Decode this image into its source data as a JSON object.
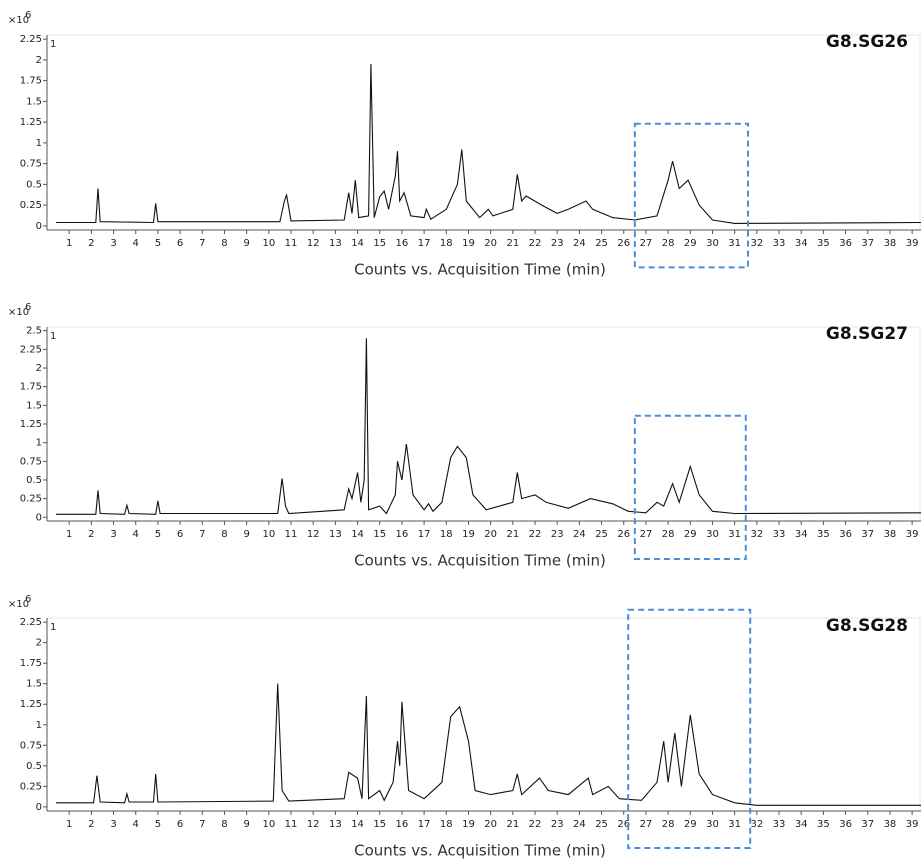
{
  "chart_data": [
    {
      "type": "line",
      "title": "G8.SG26",
      "x_label": "Counts vs. Acquisition Time (min)",
      "y_scale_label": "×10",
      "y_scale_exponent": "6",
      "trace_label": "1",
      "x": [
        0.4,
        2.2,
        2.3,
        2.4,
        4.8,
        4.9,
        5.0,
        10.5,
        10.7,
        10.8,
        11.0,
        13.4,
        13.6,
        13.75,
        13.9,
        14.05,
        14.5,
        14.6,
        14.75,
        15.0,
        15.2,
        15.4,
        15.7,
        15.8,
        15.9,
        16.1,
        16.4,
        17.0,
        17.1,
        17.3,
        18.0,
        18.5,
        18.7,
        18.9,
        19.5,
        19.9,
        20.1,
        21.0,
        21.2,
        21.4,
        21.6,
        22.3,
        23.0,
        23.5,
        24.3,
        24.6,
        25.5,
        26.5,
        27.5,
        28.0,
        28.2,
        28.5,
        28.9,
        29.4,
        30.0,
        31.0,
        39.4
      ],
      "values": [
        0.04,
        0.04,
        0.45,
        0.05,
        0.04,
        0.27,
        0.05,
        0.05,
        0.3,
        0.37,
        0.06,
        0.07,
        0.4,
        0.15,
        0.55,
        0.1,
        0.12,
        1.95,
        0.1,
        0.35,
        0.42,
        0.2,
        0.6,
        0.9,
        0.3,
        0.4,
        0.12,
        0.1,
        0.2,
        0.08,
        0.2,
        0.5,
        0.92,
        0.3,
        0.1,
        0.2,
        0.12,
        0.2,
        0.62,
        0.3,
        0.36,
        0.25,
        0.15,
        0.2,
        0.3,
        0.2,
        0.1,
        0.07,
        0.12,
        0.55,
        0.78,
        0.45,
        0.55,
        0.25,
        0.07,
        0.03,
        0.04
      ],
      "color": "#111111",
      "xlim": [
        0,
        39.4
      ],
      "xticks": [
        1,
        2,
        3,
        4,
        5,
        6,
        7,
        8,
        9,
        10,
        11,
        12,
        13,
        14,
        15,
        16,
        17,
        18,
        19,
        20,
        21,
        22,
        23,
        24,
        25,
        26,
        27,
        28,
        29,
        30,
        31,
        32,
        33,
        34,
        35,
        36,
        37,
        38,
        39
      ],
      "ylim": [
        -0.05,
        2.3
      ],
      "yticks": [
        0,
        0.25,
        0.5,
        0.75,
        1,
        1.25,
        1.5,
        1.75,
        2,
        2.25
      ],
      "highlight": {
        "x": [
          26.5,
          31.6
        ],
        "y": [
          -0.5,
          1.23
        ],
        "color": "#4a8fd6"
      }
    },
    {
      "type": "line",
      "title": "G8.SG27",
      "x_label": "Counts vs. Acquisition Time (min)",
      "y_scale_label": "×10",
      "y_scale_exponent": "6",
      "trace_label": "1",
      "x": [
        0.4,
        2.2,
        2.3,
        2.4,
        3.5,
        3.6,
        3.7,
        4.9,
        5.0,
        5.1,
        10.4,
        10.6,
        10.75,
        10.9,
        13.4,
        13.6,
        13.75,
        14.0,
        14.15,
        14.3,
        14.4,
        14.5,
        15.0,
        15.3,
        15.7,
        15.8,
        16.0,
        16.2,
        16.5,
        17.0,
        17.2,
        17.4,
        17.8,
        18.2,
        18.5,
        18.9,
        19.2,
        19.8,
        21.0,
        21.2,
        21.4,
        22.0,
        22.5,
        23.5,
        24.5,
        25.5,
        26.2,
        27.0,
        27.5,
        27.8,
        28.2,
        28.5,
        29.0,
        29.4,
        30.0,
        31.0,
        39.4
      ],
      "values": [
        0.04,
        0.04,
        0.36,
        0.05,
        0.04,
        0.16,
        0.05,
        0.04,
        0.22,
        0.05,
        0.05,
        0.52,
        0.15,
        0.05,
        0.1,
        0.38,
        0.25,
        0.6,
        0.2,
        0.5,
        2.4,
        0.1,
        0.15,
        0.05,
        0.3,
        0.75,
        0.5,
        0.98,
        0.3,
        0.1,
        0.18,
        0.08,
        0.2,
        0.8,
        0.95,
        0.8,
        0.3,
        0.1,
        0.2,
        0.6,
        0.25,
        0.3,
        0.2,
        0.12,
        0.25,
        0.18,
        0.08,
        0.06,
        0.2,
        0.15,
        0.45,
        0.2,
        0.68,
        0.3,
        0.08,
        0.05,
        0.06
      ],
      "color": "#111111",
      "xlim": [
        0,
        39.4
      ],
      "xticks": [
        1,
        2,
        3,
        4,
        5,
        6,
        7,
        8,
        9,
        10,
        11,
        12,
        13,
        14,
        15,
        16,
        17,
        18,
        19,
        20,
        21,
        22,
        23,
        24,
        25,
        26,
        27,
        28,
        29,
        30,
        31,
        32,
        33,
        34,
        35,
        36,
        37,
        38,
        39
      ],
      "ylim": [
        -0.05,
        2.55
      ],
      "yticks": [
        0,
        0.25,
        0.5,
        0.75,
        1,
        1.25,
        1.5,
        1.75,
        2,
        2.25,
        2.5
      ],
      "highlight": {
        "x": [
          26.5,
          31.5
        ],
        "y": [
          -0.56,
          1.36
        ],
        "color": "#4a8fd6"
      }
    },
    {
      "type": "line",
      "title": "G8.SG28",
      "x_label": "Counts vs. Acquisition Time (min)",
      "y_scale_label": "×10",
      "y_scale_exponent": "6",
      "trace_label": "1",
      "x": [
        0.4,
        2.1,
        2.25,
        2.4,
        3.5,
        3.6,
        3.7,
        4.8,
        4.9,
        5.0,
        10.2,
        10.4,
        10.6,
        10.9,
        13.4,
        13.6,
        14.0,
        14.2,
        14.4,
        14.5,
        15.0,
        15.2,
        15.6,
        15.8,
        15.9,
        16.0,
        16.3,
        17.0,
        17.8,
        18.2,
        18.6,
        19.0,
        19.3,
        20.0,
        21.0,
        21.2,
        21.4,
        22.2,
        22.6,
        23.5,
        24.4,
        24.6,
        25.3,
        25.8,
        26.8,
        27.5,
        27.8,
        28.0,
        28.3,
        28.6,
        29.0,
        29.4,
        30.0,
        31.0,
        32.0,
        39.4
      ],
      "values": [
        0.05,
        0.05,
        0.38,
        0.06,
        0.05,
        0.16,
        0.06,
        0.06,
        0.4,
        0.06,
        0.07,
        1.5,
        0.2,
        0.07,
        0.1,
        0.42,
        0.35,
        0.1,
        1.35,
        0.1,
        0.2,
        0.08,
        0.3,
        0.8,
        0.5,
        1.28,
        0.2,
        0.1,
        0.3,
        1.1,
        1.22,
        0.8,
        0.2,
        0.15,
        0.2,
        0.4,
        0.15,
        0.35,
        0.2,
        0.15,
        0.35,
        0.15,
        0.25,
        0.1,
        0.08,
        0.3,
        0.8,
        0.3,
        0.9,
        0.25,
        1.12,
        0.4,
        0.15,
        0.05,
        0.02,
        0.02
      ],
      "color": "#111111",
      "xlim": [
        0,
        39.4
      ],
      "xticks": [
        1,
        2,
        3,
        4,
        5,
        6,
        7,
        8,
        9,
        10,
        11,
        12,
        13,
        14,
        15,
        16,
        17,
        18,
        19,
        20,
        21,
        22,
        23,
        24,
        25,
        26,
        27,
        28,
        29,
        30,
        31,
        32,
        33,
        34,
        35,
        36,
        37,
        38,
        39
      ],
      "ylim": [
        -0.05,
        2.3
      ],
      "yticks": [
        0,
        0.25,
        0.5,
        0.75,
        1,
        1.25,
        1.5,
        1.75,
        2,
        2.25
      ],
      "highlight": {
        "x": [
          26.2,
          31.7
        ],
        "y": [
          -0.5,
          2.4
        ],
        "color": "#4a8fd6"
      }
    }
  ]
}
